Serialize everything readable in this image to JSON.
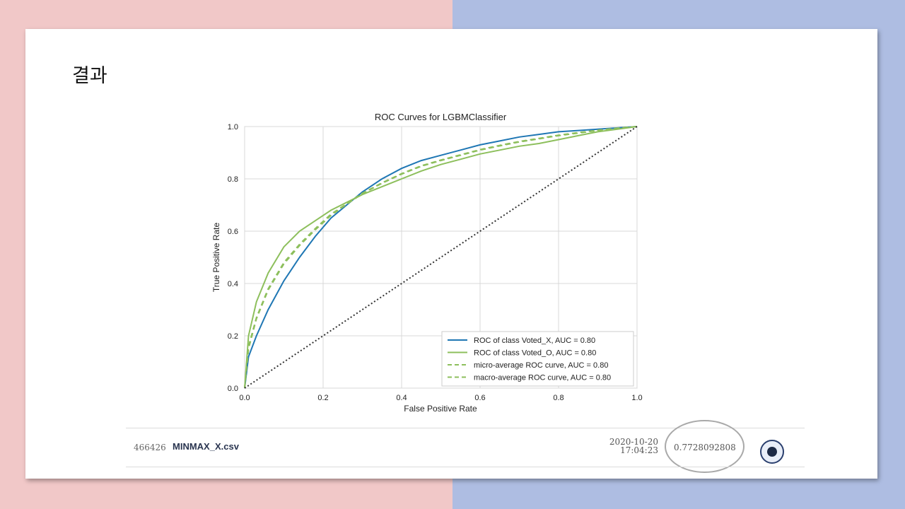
{
  "slide": {
    "title": "결과"
  },
  "chart_data": {
    "type": "line",
    "title": "ROC Curves for LGBMClassifier",
    "xlabel": "False Positive Rate",
    "ylabel": "True Positive Rate",
    "xlim": [
      0.0,
      1.0
    ],
    "ylim": [
      0.0,
      1.0
    ],
    "x_ticks": [
      "0.0",
      "0.2",
      "0.4",
      "0.6",
      "0.8",
      "1.0"
    ],
    "y_ticks": [
      "0.0",
      "0.2",
      "0.4",
      "0.6",
      "0.8",
      "1.0"
    ],
    "grid": true,
    "legend_position": "bottom-right",
    "series": [
      {
        "name": "ROC of class Voted_X, AUC = 0.80",
        "color": "#1f77b4",
        "style": "solid",
        "x": [
          0,
          0.01,
          0.03,
          0.06,
          0.1,
          0.14,
          0.18,
          0.22,
          0.26,
          0.3,
          0.35,
          0.4,
          0.45,
          0.5,
          0.55,
          0.6,
          0.65,
          0.7,
          0.75,
          0.8,
          0.85,
          0.9,
          0.95,
          1.0
        ],
        "y": [
          0,
          0.12,
          0.2,
          0.3,
          0.41,
          0.5,
          0.58,
          0.65,
          0.7,
          0.75,
          0.8,
          0.84,
          0.87,
          0.89,
          0.91,
          0.93,
          0.945,
          0.96,
          0.97,
          0.98,
          0.985,
          0.99,
          0.995,
          1.0
        ]
      },
      {
        "name": "ROC of class Voted_O, AUC = 0.80",
        "color": "#8dbf5c",
        "style": "solid",
        "x": [
          0,
          0.01,
          0.03,
          0.06,
          0.1,
          0.14,
          0.18,
          0.22,
          0.26,
          0.3,
          0.35,
          0.4,
          0.45,
          0.5,
          0.55,
          0.6,
          0.65,
          0.7,
          0.75,
          0.8,
          0.85,
          0.9,
          0.95,
          1.0
        ],
        "y": [
          0,
          0.2,
          0.33,
          0.44,
          0.54,
          0.6,
          0.64,
          0.68,
          0.71,
          0.74,
          0.77,
          0.8,
          0.83,
          0.855,
          0.875,
          0.895,
          0.91,
          0.925,
          0.935,
          0.95,
          0.965,
          0.98,
          0.99,
          1.0
        ]
      },
      {
        "name": "micro-average ROC curve, AUC = 0.80",
        "color": "#8dbf5c",
        "style": "dashed",
        "x": [
          0,
          0.01,
          0.03,
          0.06,
          0.1,
          0.14,
          0.18,
          0.22,
          0.26,
          0.3,
          0.35,
          0.4,
          0.45,
          0.5,
          0.55,
          0.6,
          0.65,
          0.7,
          0.75,
          0.8,
          0.85,
          0.9,
          0.95,
          1.0
        ],
        "y": [
          0,
          0.16,
          0.27,
          0.38,
          0.48,
          0.55,
          0.61,
          0.665,
          0.705,
          0.745,
          0.785,
          0.82,
          0.85,
          0.872,
          0.892,
          0.912,
          0.928,
          0.943,
          0.955,
          0.967,
          0.977,
          0.986,
          0.994,
          1.0
        ]
      },
      {
        "name": "macro-average ROC curve, AUC = 0.80",
        "color": "#8dbf5c",
        "style": "dashed",
        "x": [
          0,
          0.01,
          0.03,
          0.06,
          0.1,
          0.14,
          0.18,
          0.22,
          0.26,
          0.3,
          0.35,
          0.4,
          0.45,
          0.5,
          0.55,
          0.6,
          0.65,
          0.7,
          0.75,
          0.8,
          0.85,
          0.9,
          0.95,
          1.0
        ],
        "y": [
          0,
          0.15,
          0.265,
          0.375,
          0.475,
          0.545,
          0.605,
          0.66,
          0.703,
          0.743,
          0.783,
          0.818,
          0.848,
          0.87,
          0.89,
          0.91,
          0.926,
          0.941,
          0.953,
          0.965,
          0.975,
          0.985,
          0.993,
          1.0
        ]
      },
      {
        "name": "",
        "color": "#333333",
        "style": "dotted",
        "x": [
          0,
          1.0
        ],
        "y": [
          0,
          1.0
        ]
      }
    ]
  },
  "submission": {
    "id": "466426",
    "file": "MINMAX_X.csv",
    "date": "2020-10-20",
    "time": "17:04:23",
    "score": "0.7728092808"
  },
  "colors": {
    "bg_left": "#f1c8c8",
    "bg_right": "#aebde2",
    "radio_ring": "#2a3f6e",
    "radio_dot": "#1d2a45",
    "ellipse": "#a9a9a9"
  },
  "icons": {
    "select": "radio-selected-icon"
  }
}
